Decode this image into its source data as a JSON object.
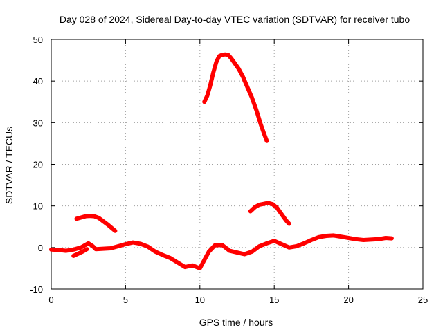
{
  "chart_data": {
    "type": "line",
    "title": "Day 028 of 2024, Sidereal Day-to-day VTEC variation (SDTVAR) for receiver tubo",
    "xlabel": "GPS time / hours",
    "ylabel": "SDTVAR / TECUs",
    "xlim": [
      0,
      25
    ],
    "ylim": [
      -10,
      50
    ],
    "xticks": [
      0,
      5,
      10,
      15,
      20,
      25
    ],
    "yticks": [
      -10,
      0,
      10,
      20,
      30,
      40,
      50
    ],
    "xtick_labels": [
      "0",
      "5",
      "10",
      "15",
      "20",
      "25"
    ],
    "ytick_labels": [
      "-10",
      "0",
      "10",
      "20",
      "30",
      "40",
      "50"
    ],
    "grid": true,
    "legend": "none",
    "color": "#ff0000",
    "series": [
      {
        "name": "arc-baseline",
        "x": [
          0,
          0.5,
          1.0,
          1.5,
          2.0,
          2.5,
          2.8,
          3.0,
          3.5,
          4.0,
          4.5,
          5.0,
          5.5,
          6.0,
          6.5,
          7.0,
          7.5,
          8.0,
          8.5,
          9.0,
          9.5,
          10.0,
          10.3,
          10.6,
          11.0,
          11.5,
          12.0,
          12.5,
          13.0,
          13.5,
          14.0,
          14.5,
          15.0,
          15.5,
          16.0,
          16.5,
          17.0,
          17.5,
          18.0,
          18.5,
          19.0,
          19.5,
          20.0,
          20.5,
          21.0,
          21.5,
          22.0,
          22.5,
          22.9
        ],
        "y": [
          -0.5,
          -0.6,
          -0.8,
          -0.5,
          0.0,
          1.0,
          0.3,
          -0.4,
          -0.3,
          -0.2,
          0.3,
          0.8,
          1.2,
          0.9,
          0.2,
          -1.0,
          -1.8,
          -2.5,
          -3.6,
          -4.7,
          -4.3,
          -5.0,
          -3.0,
          -1.0,
          0.5,
          0.6,
          -0.8,
          -1.2,
          -1.6,
          -1.0,
          0.3,
          1.0,
          1.6,
          0.8,
          0.0,
          0.3,
          1.0,
          1.8,
          2.5,
          2.8,
          2.9,
          2.6,
          2.3,
          2.0,
          1.8,
          1.9,
          2.0,
          2.3,
          2.2
        ]
      },
      {
        "name": "arc-small-dip",
        "x": [
          1.5,
          1.8,
          2.1,
          2.4
        ],
        "y": [
          -2.0,
          -1.5,
          -1.0,
          -0.4
        ]
      },
      {
        "name": "arc-morning",
        "x": [
          1.7,
          2.0,
          2.3,
          2.6,
          2.9,
          3.2,
          3.5,
          3.8,
          4.1,
          4.3
        ],
        "y": [
          6.9,
          7.2,
          7.5,
          7.6,
          7.5,
          7.1,
          6.3,
          5.5,
          4.6,
          4.0
        ]
      },
      {
        "name": "arc-peak",
        "x": [
          10.3,
          10.5,
          10.7,
          10.9,
          11.1,
          11.3,
          11.5,
          11.7,
          11.9,
          12.1,
          12.3,
          12.6,
          12.9,
          13.2,
          13.5,
          13.8,
          14.1,
          14.3,
          14.5
        ],
        "y": [
          35.0,
          36.5,
          39.0,
          42.0,
          44.5,
          46.0,
          46.3,
          46.4,
          46.3,
          45.5,
          44.5,
          43.0,
          41.0,
          38.5,
          36.0,
          33.0,
          29.5,
          27.5,
          25.6
        ]
      },
      {
        "name": "arc-afternoon",
        "x": [
          13.4,
          13.7,
          14.0,
          14.3,
          14.6,
          14.9,
          15.2,
          15.5,
          15.8,
          16.0
        ],
        "y": [
          8.7,
          9.7,
          10.3,
          10.5,
          10.7,
          10.4,
          9.5,
          8.0,
          6.5,
          5.7
        ]
      }
    ]
  }
}
